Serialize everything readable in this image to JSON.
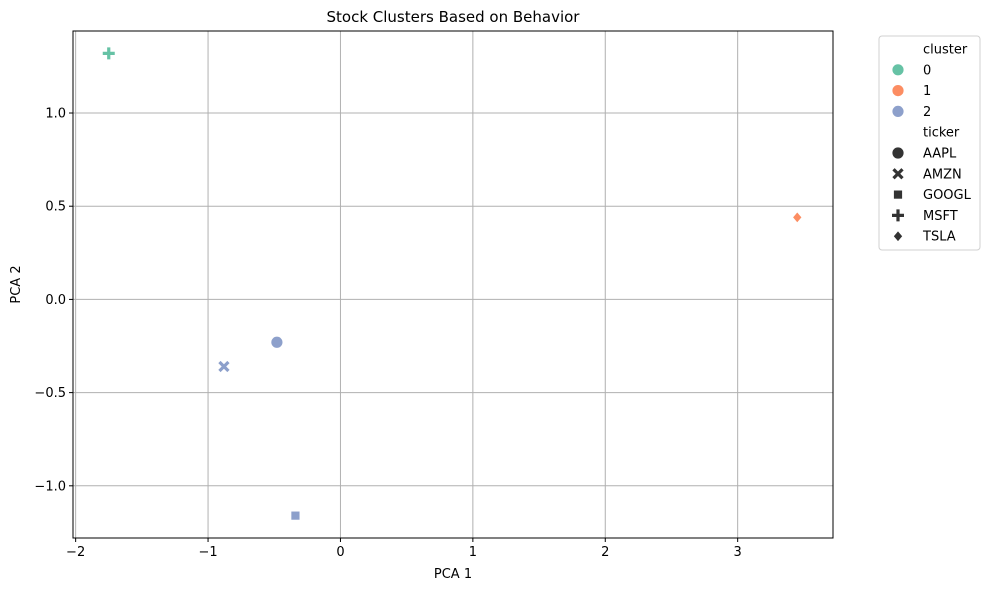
{
  "chart_data": {
    "type": "scatter",
    "title": "Stock Clusters Based on Behavior",
    "xlabel": "PCA 1",
    "ylabel": "PCA 2",
    "xlim": [
      -2.02,
      3.72
    ],
    "ylim": [
      -1.28,
      1.44
    ],
    "xticks": [
      -2,
      -1,
      0,
      1,
      2,
      3
    ],
    "yticks": [
      -1.0,
      -0.5,
      0.0,
      0.5,
      1.0
    ],
    "xtick_labels": [
      "−2",
      "−1",
      "0",
      "1",
      "2",
      "3"
    ],
    "ytick_labels": [
      "−1.0",
      "−0.5",
      "0.0",
      "0.5",
      "1.0"
    ],
    "grid": true,
    "legend_position": "outside-top-right",
    "cluster_colors": {
      "0": "#66c2a5",
      "1": "#fc8d62",
      "2": "#8da0cb"
    },
    "points": [
      {
        "ticker": "AAPL",
        "cluster": "2",
        "x": -0.48,
        "y": -0.23
      },
      {
        "ticker": "AMZN",
        "cluster": "2",
        "x": -0.88,
        "y": -0.36
      },
      {
        "ticker": "GOOGL",
        "cluster": "2",
        "x": -0.34,
        "y": -1.16
      },
      {
        "ticker": "MSFT",
        "cluster": "0",
        "x": -1.75,
        "y": 1.32
      },
      {
        "ticker": "TSLA",
        "cluster": "1",
        "x": 3.45,
        "y": 0.44
      }
    ],
    "legend": {
      "hue_title": "cluster",
      "hue_items": [
        {
          "label": "0",
          "color": "#66c2a5"
        },
        {
          "label": "1",
          "color": "#fc8d62"
        },
        {
          "label": "2",
          "color": "#8da0cb"
        }
      ],
      "style_title": "ticker",
      "style_items": [
        {
          "label": "AAPL",
          "marker": "circle"
        },
        {
          "label": "AMZN",
          "marker": "x"
        },
        {
          "label": "GOOGL",
          "marker": "square"
        },
        {
          "label": "MSFT",
          "marker": "plus"
        },
        {
          "label": "TSLA",
          "marker": "diamond"
        }
      ]
    }
  }
}
